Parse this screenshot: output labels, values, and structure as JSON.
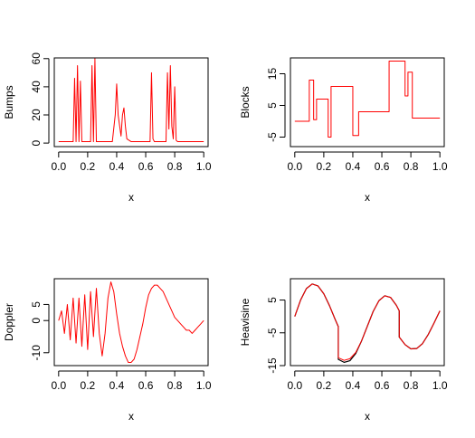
{
  "chart_data": [
    {
      "type": "line",
      "xlabel": "x",
      "ylabel": "Bumps",
      "xlim": [
        -0.03,
        1.03
      ],
      "ylim": [
        -2.5,
        60.5
      ],
      "xticks": [
        0.0,
        0.2,
        0.4,
        0.6,
        0.8,
        1.0
      ],
      "xtick_labels": [
        "0.0",
        "0.2",
        "0.4",
        "0.6",
        "0.8",
        "1.0"
      ],
      "yticks": [
        0,
        20,
        40,
        60
      ],
      "ytick_labels": [
        "0",
        "20",
        "40",
        "60"
      ],
      "grid": false,
      "series": [
        {
          "color": "#ff0000",
          "x": [
            0.0,
            0.05,
            0.1,
            0.11,
            0.12,
            0.13,
            0.14,
            0.15,
            0.16,
            0.2,
            0.22,
            0.23,
            0.24,
            0.25,
            0.26,
            0.3,
            0.37,
            0.39,
            0.4,
            0.41,
            0.43,
            0.44,
            0.45,
            0.46,
            0.47,
            0.5,
            0.63,
            0.64,
            0.65,
            0.66,
            0.7,
            0.74,
            0.75,
            0.76,
            0.77,
            0.78,
            0.79,
            0.8,
            0.81,
            0.82,
            0.9,
            1.0
          ],
          "y": [
            1,
            1,
            1,
            46,
            1,
            55,
            1,
            44,
            1,
            1,
            1,
            55,
            1,
            60,
            1,
            1,
            1,
            20,
            42,
            20,
            5,
            20,
            25,
            12,
            3,
            1,
            1,
            50,
            3,
            1,
            1,
            1,
            50,
            10,
            55,
            12,
            3,
            40,
            2,
            1,
            1,
            1
          ]
        }
      ]
    },
    {
      "type": "line",
      "xlabel": "x",
      "ylabel": "Blocks",
      "xlim": [
        -0.03,
        1.03
      ],
      "ylim": [
        -8,
        20
      ],
      "xticks": [
        0.0,
        0.2,
        0.4,
        0.6,
        0.8,
        1.0
      ],
      "xtick_labels": [
        "0.0",
        "0.2",
        "0.4",
        "0.6",
        "0.8",
        "1.0"
      ],
      "yticks": [
        -5,
        5,
        15
      ],
      "ytick_labels": [
        "-5",
        "5",
        "15"
      ],
      "grid": false,
      "series": [
        {
          "color": "#ff0000",
          "x": [
            0.0,
            0.1,
            0.1,
            0.13,
            0.13,
            0.15,
            0.15,
            0.23,
            0.23,
            0.25,
            0.25,
            0.4,
            0.4,
            0.44,
            0.44,
            0.65,
            0.65,
            0.76,
            0.76,
            0.78,
            0.78,
            0.81,
            0.81,
            1.0
          ],
          "y": [
            0,
            0,
            13,
            13,
            0.5,
            0.5,
            7,
            7,
            -5,
            -5,
            11,
            11,
            -4.5,
            -4.5,
            3,
            3,
            19,
            19,
            8,
            8,
            15.5,
            15.5,
            1,
            1
          ]
        }
      ]
    },
    {
      "type": "line",
      "xlabel": "x",
      "ylabel": "Doppler",
      "xlim": [
        -0.03,
        1.03
      ],
      "ylim": [
        -14,
        13
      ],
      "xticks": [
        0.0,
        0.2,
        0.4,
        0.6,
        0.8,
        1.0
      ],
      "xtick_labels": [
        "0.0",
        "0.2",
        "0.4",
        "0.6",
        "0.8",
        "1.0"
      ],
      "yticks": [
        -10,
        0,
        5
      ],
      "ytick_labels": [
        "-10",
        "0",
        "5"
      ],
      "grid": false,
      "series": [
        {
          "color": "#ff0000",
          "x": [
            0.0,
            0.02,
            0.04,
            0.06,
            0.08,
            0.1,
            0.12,
            0.14,
            0.16,
            0.18,
            0.2,
            0.22,
            0.24,
            0.26,
            0.28,
            0.3,
            0.32,
            0.34,
            0.36,
            0.38,
            0.4,
            0.42,
            0.44,
            0.46,
            0.48,
            0.5,
            0.52,
            0.54,
            0.56,
            0.58,
            0.6,
            0.62,
            0.64,
            0.66,
            0.68,
            0.7,
            0.72,
            0.74,
            0.76,
            0.78,
            0.8,
            0.82,
            0.84,
            0.86,
            0.88,
            0.9,
            0.92,
            0.94,
            0.96,
            0.98,
            1.0
          ],
          "y": [
            0,
            3,
            -4,
            5,
            -6,
            7,
            -7,
            7,
            -8,
            8,
            -9,
            9,
            -5,
            10,
            -4,
            -11,
            -4,
            7,
            12,
            9,
            2,
            -4,
            -8,
            -11,
            -13,
            -13,
            -12,
            -9,
            -5,
            -1,
            4,
            8,
            10,
            11,
            11,
            10,
            9,
            7,
            5,
            3,
            1,
            0,
            -1,
            -2,
            -3,
            -3,
            -4,
            -3,
            -2,
            -1,
            0
          ]
        }
      ]
    },
    {
      "type": "line",
      "xlabel": "x",
      "ylabel": "Heavisine",
      "xlim": [
        -0.03,
        1.03
      ],
      "ylim": [
        -15,
        11.5
      ],
      "xticks": [
        0.0,
        0.2,
        0.4,
        0.6,
        0.8,
        1.0
      ],
      "xtick_labels": [
        "0.0",
        "0.2",
        "0.4",
        "0.6",
        "0.8",
        "1.0"
      ],
      "yticks": [
        -15,
        -5,
        5
      ],
      "ytick_labels": [
        "-15",
        "-5",
        "5"
      ],
      "grid": false,
      "series": [
        {
          "color": "#000000",
          "x": [
            0.0,
            0.04,
            0.08,
            0.12,
            0.16,
            0.2,
            0.24,
            0.28,
            0.3,
            0.3,
            0.34,
            0.38,
            0.42,
            0.46,
            0.5,
            0.54,
            0.58,
            0.62,
            0.66,
            0.7,
            0.72,
            0.72,
            0.76,
            0.8,
            0.84,
            0.88,
            0.92,
            0.96,
            1.0
          ],
          "y": [
            0,
            5,
            8.5,
            9.9,
            9.3,
            6.9,
            3.2,
            -1.1,
            -3.1,
            -13.1,
            -14,
            -13.5,
            -11.3,
            -7.5,
            -3,
            1.5,
            4.8,
            6.3,
            5.8,
            3.4,
            1.7,
            -6.3,
            -8.6,
            -9.9,
            -9.8,
            -8.3,
            -5.5,
            -2,
            1.7
          ]
        },
        {
          "color": "#ff0000",
          "x": [
            0.0,
            0.04,
            0.08,
            0.12,
            0.16,
            0.2,
            0.24,
            0.28,
            0.3,
            0.3,
            0.34,
            0.38,
            0.42,
            0.46,
            0.5,
            0.54,
            0.58,
            0.62,
            0.66,
            0.7,
            0.72,
            0.72,
            0.76,
            0.8,
            0.84,
            0.88,
            0.92,
            0.96,
            1.0
          ],
          "y": [
            0,
            5,
            8.5,
            9.9,
            9.3,
            6.9,
            3.2,
            -1.1,
            -3.1,
            -12.6,
            -13.4,
            -12.9,
            -11,
            -7.5,
            -3,
            1.5,
            4.8,
            6.3,
            5.8,
            3.4,
            1.7,
            -6.3,
            -8.6,
            -9.9,
            -9.8,
            -8.3,
            -5.5,
            -2,
            1.7
          ]
        }
      ]
    }
  ]
}
